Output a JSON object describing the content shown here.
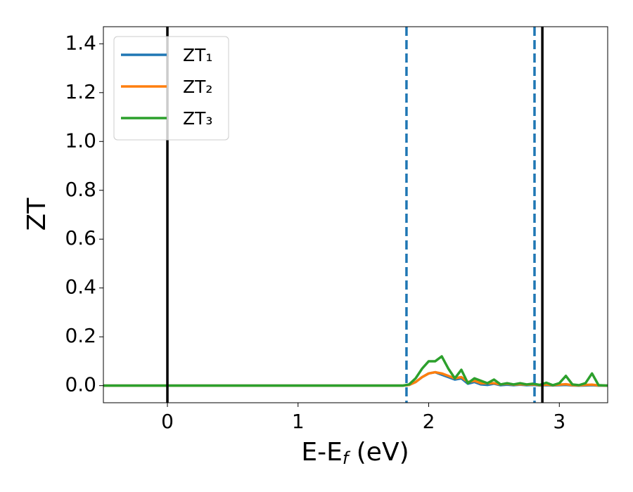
{
  "chart_data": {
    "type": "line",
    "y_label": "ZT",
    "x_label": "E-E",
    "x_label_sub": "f",
    "x_label_suffix": " (eV)",
    "xlim": [
      -0.49,
      3.37
    ],
    "ylim": [
      -0.07,
      1.47
    ],
    "xticks": [
      0,
      1,
      2,
      3
    ],
    "yticks": [
      {
        "value": 0,
        "label": "0.0"
      },
      0.2,
      0.4,
      0.6,
      0.8,
      {
        "value": 1,
        "label": "1.0"
      },
      1.2,
      1.4
    ],
    "legend": "upper left",
    "x": [
      -0.49,
      1.75,
      1.8,
      1.85,
      1.9,
      1.95,
      2.0,
      2.05,
      2.1,
      2.15,
      2.2,
      2.25,
      2.3,
      2.35,
      2.4,
      2.45,
      2.5,
      2.55,
      2.6,
      2.65,
      2.7,
      2.75,
      2.8,
      2.85,
      2.9,
      2.95,
      3.0,
      3.05,
      3.1,
      3.15,
      3.2,
      3.25,
      3.3,
      3.37
    ],
    "series": [
      {
        "name": "ZT₁",
        "color": "#1f77b4",
        "values": [
          0,
          0,
          0,
          0.003,
          0.015,
          0.035,
          0.05,
          0.055,
          0.045,
          0.035,
          0.025,
          0.03,
          0.008,
          0.015,
          0.005,
          0.003,
          0.008,
          0.002,
          0.004,
          0.002,
          0.004,
          0.002,
          0.003,
          0.001,
          0.002,
          0.001,
          0.002,
          0.003,
          0.001,
          0,
          0.001,
          0.002,
          0,
          0
        ]
      },
      {
        "name": "ZT₂",
        "color": "#ff7f0e",
        "values": [
          0,
          0,
          0,
          0.003,
          0.015,
          0.035,
          0.05,
          0.055,
          0.05,
          0.04,
          0.03,
          0.035,
          0.015,
          0.02,
          0.01,
          0.01,
          0.01,
          0.005,
          0.008,
          0.004,
          0.006,
          0.004,
          0.005,
          0.002,
          0.004,
          0.002,
          0.004,
          0.006,
          0.002,
          0.001,
          0.003,
          0.004,
          0.001,
          0
        ]
      },
      {
        "name": "ZT₃",
        "color": "#2ca02c",
        "values": [
          0,
          0,
          0,
          0.005,
          0.03,
          0.07,
          0.1,
          0.1,
          0.12,
          0.07,
          0.03,
          0.065,
          0.01,
          0.03,
          0.02,
          0.01,
          0.025,
          0.005,
          0.01,
          0.005,
          0.01,
          0.005,
          0.008,
          0.003,
          0.012,
          0.002,
          0.01,
          0.04,
          0.005,
          0.002,
          0.01,
          0.05,
          0.002,
          0
        ]
      }
    ],
    "vlines": [
      {
        "x": 0,
        "color": "#000000",
        "style": "solid"
      },
      {
        "x": 1.83,
        "color": "#1f77b4",
        "style": "dashed"
      },
      {
        "x": 2.81,
        "color": "#1f77b4",
        "style": "dashed"
      },
      {
        "x": 2.87,
        "color": "#000000",
        "style": "solid"
      }
    ]
  }
}
